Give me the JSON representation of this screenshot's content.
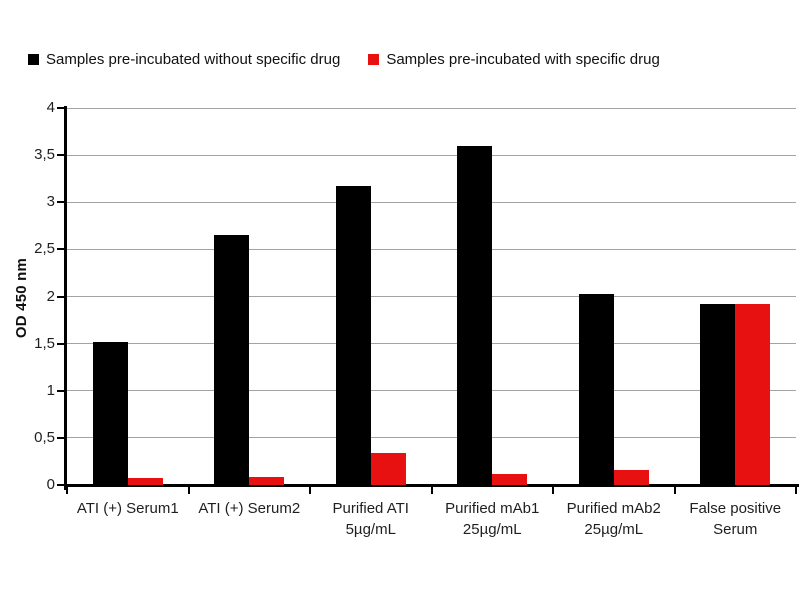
{
  "chart_data": {
    "type": "bar",
    "title": "",
    "ylabel": "OD 450 nm",
    "ylim": [
      0,
      4
    ],
    "grid": true,
    "legend_position": "top",
    "yticks": [
      {
        "v": 0,
        "label": "0"
      },
      {
        "v": 0.5,
        "label": "0,5"
      },
      {
        "v": 1,
        "label": "1"
      },
      {
        "v": 1.5,
        "label": "1,5"
      },
      {
        "v": 2,
        "label": "2"
      },
      {
        "v": 2.5,
        "label": "2,5"
      },
      {
        "v": 3,
        "label": "3"
      },
      {
        "v": 3.5,
        "label": "3,5"
      },
      {
        "v": 4,
        "label": "4"
      }
    ],
    "categories": [
      [
        "ATI (+) Serum1"
      ],
      [
        "ATI (+) Serum2"
      ],
      [
        "Purified ATI",
        "5µg/mL"
      ],
      [
        "Purified mAb1",
        "25µg/mL"
      ],
      [
        "Purified mAb2",
        "25µg/mL"
      ],
      [
        "False positive",
        "Serum"
      ]
    ],
    "series": [
      {
        "name": "Samples pre-incubated without specific drug",
        "color": "#000000",
        "values": [
          1.52,
          2.65,
          3.17,
          3.6,
          2.03,
          1.92
        ]
      },
      {
        "name": "Samples pre-incubated with specific drug",
        "color": "#e81111",
        "values": [
          0.07,
          0.08,
          0.34,
          0.12,
          0.16,
          1.92
        ]
      }
    ]
  }
}
